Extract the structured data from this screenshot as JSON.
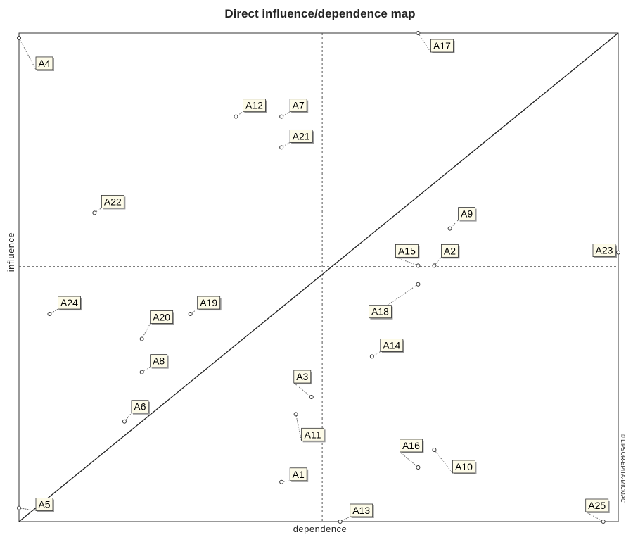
{
  "chart_data": {
    "type": "scatter",
    "title": "Direct influence/dependence map",
    "xlabel": "dependence",
    "ylabel": "influence",
    "copyright": "© LIPSOR-EPITA-MICMAC",
    "grid": false,
    "diagonal": true,
    "xlim": [
      0,
      100
    ],
    "ylim": [
      0,
      100
    ],
    "center": {
      "x": 50.6,
      "y": 52.2
    },
    "points": [
      {
        "label": "A1",
        "x": 43.8,
        "y": 8.1
      },
      {
        "label": "A2",
        "x": 69.3,
        "y": 52.4
      },
      {
        "label": "A3",
        "x": 48.8,
        "y": 25.5
      },
      {
        "label": "A4",
        "x": 0.0,
        "y": 99.0
      },
      {
        "label": "A5",
        "x": 0.0,
        "y": 2.8
      },
      {
        "label": "A6",
        "x": 17.6,
        "y": 20.5
      },
      {
        "label": "A7",
        "x": 43.8,
        "y": 82.9
      },
      {
        "label": "A8",
        "x": 20.5,
        "y": 30.6
      },
      {
        "label": "A9",
        "x": 71.9,
        "y": 60.0
      },
      {
        "label": "A10",
        "x": 69.3,
        "y": 14.7
      },
      {
        "label": "A11",
        "x": 46.2,
        "y": 22.0
      },
      {
        "label": "A12",
        "x": 36.2,
        "y": 82.9
      },
      {
        "label": "A13",
        "x": 53.6,
        "y": 0.0
      },
      {
        "label": "A14",
        "x": 58.9,
        "y": 33.8
      },
      {
        "label": "A15",
        "x": 66.6,
        "y": 52.4
      },
      {
        "label": "A16",
        "x": 66.6,
        "y": 11.1
      },
      {
        "label": "A17",
        "x": 66.6,
        "y": 100.0
      },
      {
        "label": "A18",
        "x": 66.6,
        "y": 48.6
      },
      {
        "label": "A19",
        "x": 28.6,
        "y": 42.5
      },
      {
        "label": "A20",
        "x": 20.5,
        "y": 37.4
      },
      {
        "label": "A21",
        "x": 43.8,
        "y": 76.6
      },
      {
        "label": "A22",
        "x": 12.6,
        "y": 63.2
      },
      {
        "label": "A23",
        "x": 100.0,
        "y": 55.1
      },
      {
        "label": "A24",
        "x": 5.1,
        "y": 42.5
      },
      {
        "label": "A25",
        "x": 97.5,
        "y": 0.0
      }
    ]
  }
}
